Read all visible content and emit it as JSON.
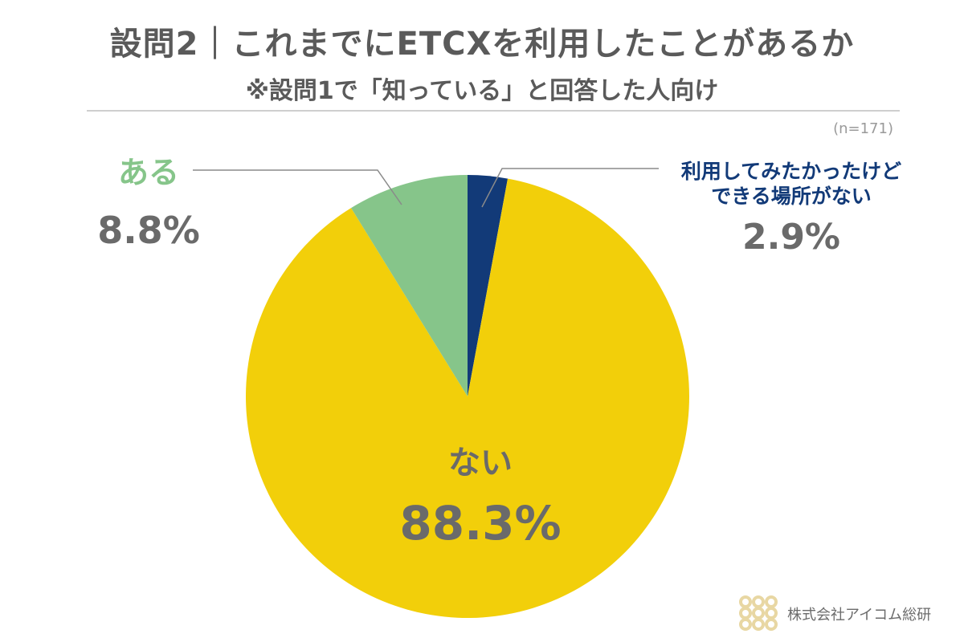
{
  "header": {
    "title": "設問2｜これまでにETCXを利用したことがあるか",
    "subtitle": "※設問1で「知っている」と回答した人向け",
    "n_label": "(n=171)"
  },
  "chart_data": {
    "type": "pie",
    "slices": [
      {
        "label": "利用してみたかったけど できる場所がない",
        "label_lines": [
          "利用してみたかったけど",
          "できる場所がない"
        ],
        "value": 2.9,
        "display": "2.9%",
        "color": "#123a78",
        "label_color": "#123a78"
      },
      {
        "label": "ない",
        "label_lines": [
          "ない"
        ],
        "value": 88.3,
        "display": "88.3%",
        "color": "#f2cf0a",
        "label_color": "#6a6a6a"
      },
      {
        "label": "ある",
        "label_lines": [
          "ある"
        ],
        "value": 8.8,
        "display": "8.8%",
        "color": "#86c58a",
        "label_color": "#86c58a"
      }
    ],
    "start": "top",
    "direction": "clockwise"
  },
  "footer": {
    "logo_text": "株式会社アイコム総研",
    "logo_color": "#e8d7a3"
  }
}
